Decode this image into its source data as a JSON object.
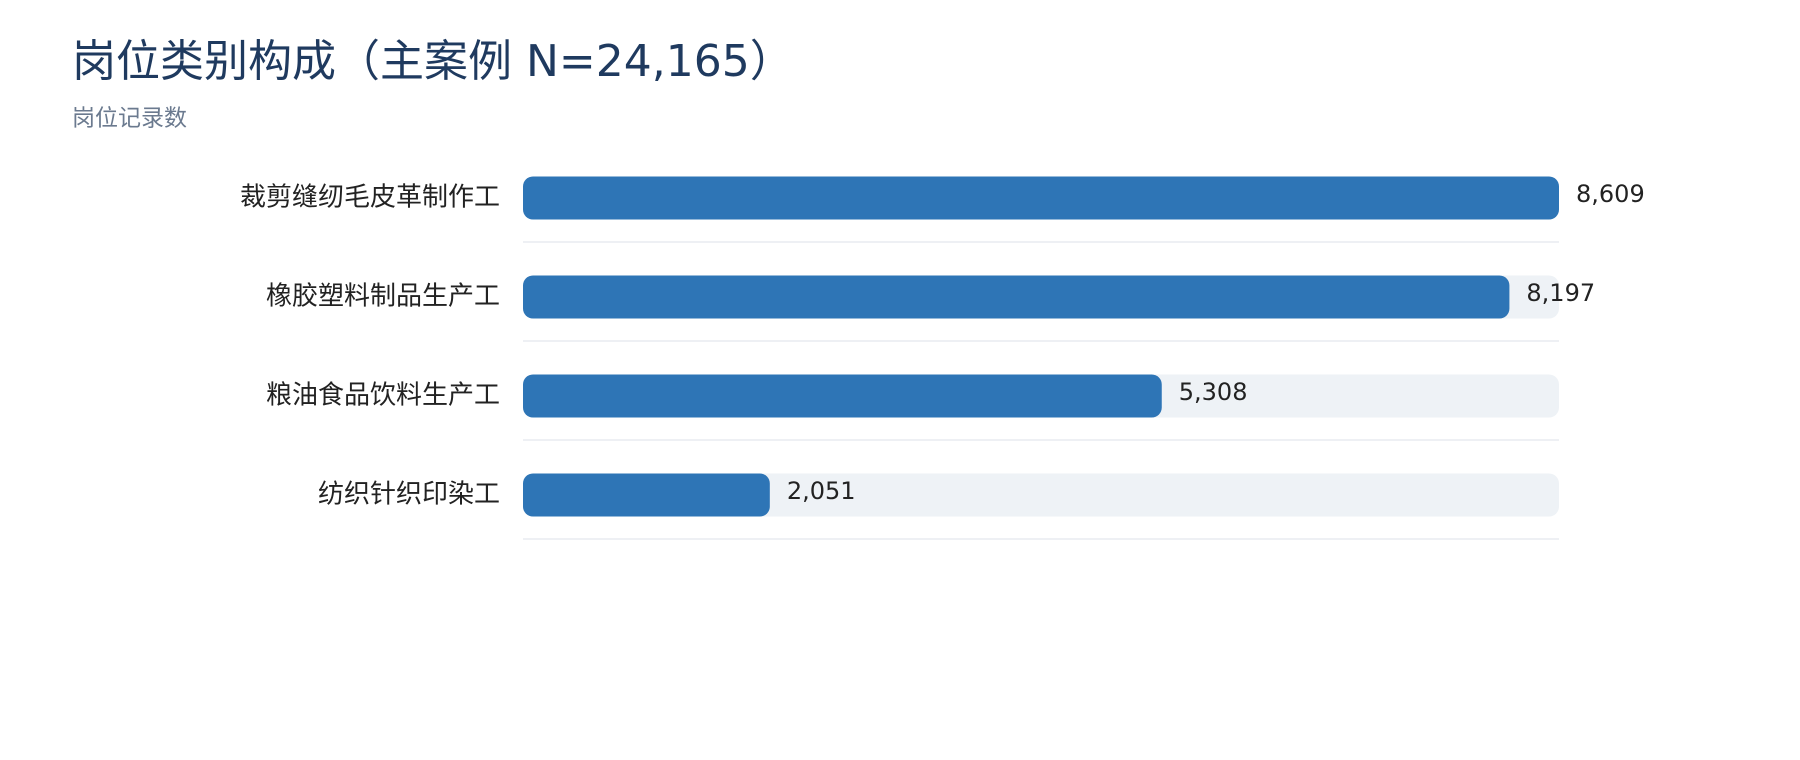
{
  "chart_data": {
    "type": "bar",
    "orientation": "horizontal",
    "title": "岗位类别构成（主案例 N=24,165）",
    "subtitle": "岗位记录数",
    "categories": [
      "裁剪缝纫毛皮革制作工",
      "橡胶塑料制品生产工",
      "粮油食品饮料生产工",
      "纺织针织印染工"
    ],
    "values": [
      8609,
      8197,
      5308,
      2051
    ],
    "value_labels": [
      "8,609",
      "8,197",
      "5,308",
      "2,051"
    ],
    "color": "#2e75b6",
    "track_color": "#eef2f6",
    "xlim": [
      0,
      8609
    ]
  }
}
